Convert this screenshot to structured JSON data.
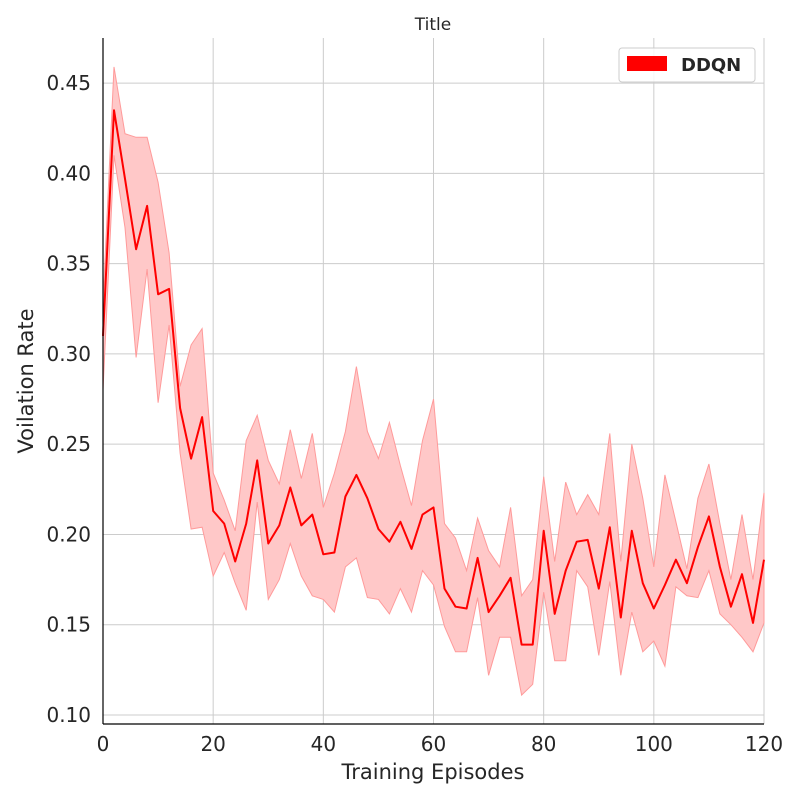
{
  "chart_data": {
    "type": "line",
    "title": "Title",
    "xlabel": "Training Episodes",
    "ylabel": "Voilation Rate",
    "xlim": [
      0,
      120
    ],
    "ylim": [
      0.095,
      0.475
    ],
    "xticks": [
      0,
      20,
      40,
      60,
      80,
      100,
      120
    ],
    "yticks": [
      0.1,
      0.15,
      0.2,
      0.25,
      0.3,
      0.35,
      0.4,
      0.45
    ],
    "grid": true,
    "legend_position": "top-right",
    "colors": {
      "line": "#ff0000",
      "band": "#ffc8c8",
      "band_edge": "#ff9a9a",
      "grid": "#cccccc",
      "axis": "#000000"
    },
    "series": [
      {
        "name": "DDQN",
        "x": [
          0,
          2,
          4,
          6,
          8,
          10,
          12,
          14,
          16,
          18,
          20,
          22,
          24,
          26,
          28,
          30,
          32,
          34,
          36,
          38,
          40,
          42,
          44,
          46,
          48,
          50,
          52,
          54,
          56,
          58,
          60,
          62,
          64,
          66,
          68,
          70,
          72,
          74,
          76,
          78,
          80,
          82,
          84,
          86,
          88,
          90,
          92,
          94,
          96,
          98,
          100,
          102,
          104,
          106,
          108,
          110,
          112,
          114,
          116,
          118,
          120
        ],
        "values": [
          0.31,
          0.435,
          0.397,
          0.358,
          0.382,
          0.333,
          0.336,
          0.27,
          0.242,
          0.265,
          0.213,
          0.206,
          0.185,
          0.206,
          0.241,
          0.195,
          0.205,
          0.226,
          0.205,
          0.211,
          0.189,
          0.19,
          0.221,
          0.233,
          0.22,
          0.203,
          0.196,
          0.207,
          0.192,
          0.211,
          0.215,
          0.17,
          0.16,
          0.159,
          0.187,
          0.157,
          0.166,
          0.176,
          0.139,
          0.139,
          0.202,
          0.156,
          0.18,
          0.196,
          0.197,
          0.17,
          0.204,
          0.154,
          0.202,
          0.173,
          0.159,
          0.172,
          0.186,
          0.173,
          0.193,
          0.21,
          0.182,
          0.16,
          0.178,
          0.151,
          0.186
        ],
        "lower": [
          0.28,
          0.41,
          0.37,
          0.298,
          0.347,
          0.273,
          0.316,
          0.245,
          0.203,
          0.204,
          0.177,
          0.19,
          0.173,
          0.158,
          0.218,
          0.164,
          0.175,
          0.195,
          0.177,
          0.166,
          0.164,
          0.157,
          0.182,
          0.187,
          0.165,
          0.164,
          0.156,
          0.17,
          0.157,
          0.18,
          0.172,
          0.149,
          0.135,
          0.135,
          0.165,
          0.122,
          0.143,
          0.143,
          0.111,
          0.117,
          0.168,
          0.13,
          0.13,
          0.18,
          0.171,
          0.133,
          0.174,
          0.122,
          0.157,
          0.135,
          0.141,
          0.127,
          0.171,
          0.166,
          0.165,
          0.18,
          0.156,
          0.15,
          0.143,
          0.135,
          0.151
        ],
        "upper": [
          0.328,
          0.459,
          0.422,
          0.42,
          0.42,
          0.395,
          0.356,
          0.282,
          0.305,
          0.314,
          0.234,
          0.219,
          0.202,
          0.252,
          0.266,
          0.241,
          0.228,
          0.258,
          0.231,
          0.256,
          0.215,
          0.234,
          0.257,
          0.293,
          0.257,
          0.242,
          0.262,
          0.238,
          0.216,
          0.252,
          0.275,
          0.206,
          0.198,
          0.18,
          0.209,
          0.191,
          0.182,
          0.215,
          0.166,
          0.175,
          0.232,
          0.185,
          0.229,
          0.211,
          0.222,
          0.211,
          0.256,
          0.185,
          0.25,
          0.22,
          0.182,
          0.233,
          0.207,
          0.181,
          0.22,
          0.239,
          0.206,
          0.175,
          0.211,
          0.175,
          0.223
        ]
      }
    ]
  }
}
